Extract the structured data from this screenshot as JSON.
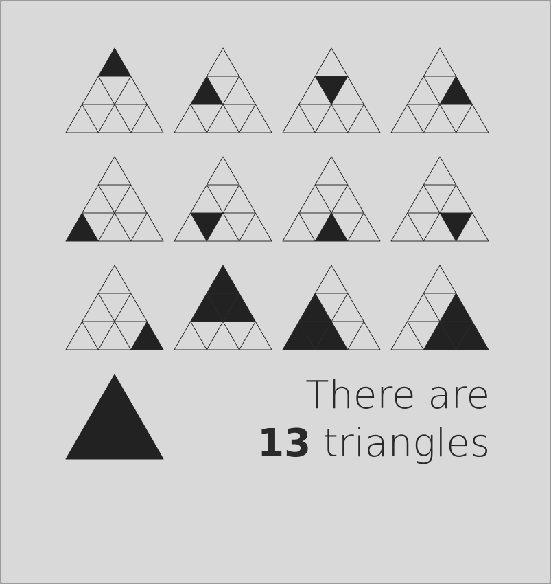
{
  "colors": {
    "background": "#d9d9d9",
    "frame": "#9a9a9a",
    "line": "#2a2a2a",
    "fill": "#222222",
    "text": "#2a2a2a"
  },
  "puzzle": {
    "triangle_size_rows": 3,
    "figures": [
      {
        "name": "small-up-row1",
        "highlight": "size1",
        "apex_row": 0,
        "apex_col": 0,
        "orientation": "up"
      },
      {
        "name": "small-up-row2-left",
        "highlight": "size1",
        "apex_row": 1,
        "apex_col": 0,
        "orientation": "up"
      },
      {
        "name": "small-down-row2",
        "highlight": "size1",
        "apex_row": 1,
        "apex_col": 0,
        "orientation": "down"
      },
      {
        "name": "small-up-row2-right",
        "highlight": "size1",
        "apex_row": 1,
        "apex_col": 1,
        "orientation": "up"
      },
      {
        "name": "small-up-row3-left",
        "highlight": "size1",
        "apex_row": 2,
        "apex_col": 0,
        "orientation": "up"
      },
      {
        "name": "small-down-row3-left",
        "highlight": "size1",
        "apex_row": 2,
        "apex_col": 0,
        "orientation": "down"
      },
      {
        "name": "small-up-row3-middle",
        "highlight": "size1",
        "apex_row": 2,
        "apex_col": 1,
        "orientation": "up"
      },
      {
        "name": "small-down-row3-right",
        "highlight": "size1",
        "apex_row": 2,
        "apex_col": 1,
        "orientation": "down"
      },
      {
        "name": "small-up-row3-right",
        "highlight": "size1",
        "apex_row": 2,
        "apex_col": 2,
        "orientation": "up"
      },
      {
        "name": "medium-up-top",
        "highlight": "size2",
        "apex_row": 0,
        "apex_col": 0,
        "orientation": "up"
      },
      {
        "name": "medium-up-left",
        "highlight": "size2",
        "apex_row": 1,
        "apex_col": 0,
        "orientation": "up"
      },
      {
        "name": "medium-up-right",
        "highlight": "size2",
        "apex_row": 1,
        "apex_col": 1,
        "orientation": "up"
      },
      {
        "name": "large-whole",
        "highlight": "size3",
        "apex_row": 0,
        "apex_col": 0,
        "orientation": "up"
      }
    ]
  },
  "answer": {
    "line1": "There are",
    "count": "13",
    "count_suffix": " triangles"
  }
}
